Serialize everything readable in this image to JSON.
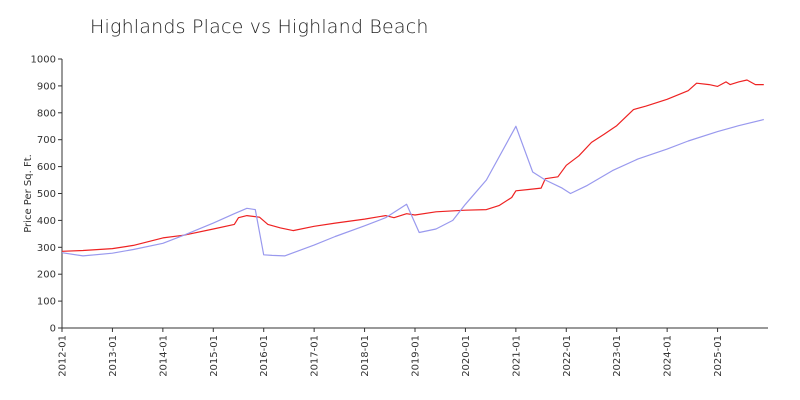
{
  "chart_data": {
    "type": "line",
    "title": "Highlands Place vs Highland Beach",
    "ylabel": "Price Per Sq. Ft.",
    "xlabel": "",
    "ylim": [
      0,
      1000
    ],
    "yticks": [
      0,
      100,
      200,
      300,
      400,
      500,
      600,
      700,
      800,
      900,
      1000
    ],
    "xlim": [
      "2012-01",
      "2025-12"
    ],
    "xticks": [
      "2012-01",
      "2013-01",
      "2014-01",
      "2015-01",
      "2016-01",
      "2017-01",
      "2018-01",
      "2019-01",
      "2020-01",
      "2021-01",
      "2022-01",
      "2023-01",
      "2024-01",
      "2025-01"
    ],
    "grid": false,
    "legend": "none",
    "series": [
      {
        "color": "#ee2222",
        "points": [
          [
            "2012-01",
            285
          ],
          [
            "2012-06",
            288
          ],
          [
            "2013-01",
            295
          ],
          [
            "2013-06",
            307
          ],
          [
            "2014-01",
            335
          ],
          [
            "2014-06",
            345
          ],
          [
            "2015-01",
            368
          ],
          [
            "2015-06",
            385
          ],
          [
            "2015-07",
            410
          ],
          [
            "2015-09",
            418
          ],
          [
            "2015-12",
            412
          ],
          [
            "2016-02",
            385
          ],
          [
            "2016-05",
            372
          ],
          [
            "2016-08",
            362
          ],
          [
            "2017-01",
            378
          ],
          [
            "2017-06",
            390
          ],
          [
            "2018-01",
            405
          ],
          [
            "2018-06",
            418
          ],
          [
            "2018-08",
            410
          ],
          [
            "2018-11",
            425
          ],
          [
            "2019-01",
            420
          ],
          [
            "2019-06",
            432
          ],
          [
            "2020-01",
            438
          ],
          [
            "2020-06",
            440
          ],
          [
            "2020-09",
            455
          ],
          [
            "2020-12",
            485
          ],
          [
            "2021-01",
            510
          ],
          [
            "2021-04",
            515
          ],
          [
            "2021-07",
            520
          ],
          [
            "2021-08",
            555
          ],
          [
            "2021-11",
            562
          ],
          [
            "2022-01",
            605
          ],
          [
            "2022-04",
            640
          ],
          [
            "2022-07",
            690
          ],
          [
            "2022-10",
            720
          ],
          [
            "2023-01",
            752
          ],
          [
            "2023-05",
            812
          ],
          [
            "2023-08",
            825
          ],
          [
            "2024-01",
            850
          ],
          [
            "2024-06",
            882
          ],
          [
            "2024-08",
            910
          ],
          [
            "2024-11",
            905
          ],
          [
            "2025-01",
            898
          ],
          [
            "2025-03",
            915
          ],
          [
            "2025-04",
            905
          ],
          [
            "2025-06",
            915
          ],
          [
            "2025-08",
            922
          ],
          [
            "2025-10",
            905
          ],
          [
            "2025-12",
            905
          ]
        ]
      },
      {
        "color": "#9999ee",
        "points": [
          [
            "2012-01",
            280
          ],
          [
            "2012-06",
            268
          ],
          [
            "2013-01",
            278
          ],
          [
            "2013-06",
            292
          ],
          [
            "2014-01",
            315
          ],
          [
            "2014-06",
            345
          ],
          [
            "2015-01",
            390
          ],
          [
            "2015-06",
            425
          ],
          [
            "2015-09",
            445
          ],
          [
            "2015-11",
            440
          ],
          [
            "2016-01",
            272
          ],
          [
            "2016-03",
            270
          ],
          [
            "2016-06",
            268
          ],
          [
            "2017-01",
            308
          ],
          [
            "2017-06",
            340
          ],
          [
            "2018-01",
            380
          ],
          [
            "2018-06",
            410
          ],
          [
            "2018-11",
            460
          ],
          [
            "2019-02",
            355
          ],
          [
            "2019-06",
            368
          ],
          [
            "2019-10",
            400
          ],
          [
            "2020-01",
            460
          ],
          [
            "2020-06",
            550
          ],
          [
            "2021-01",
            750
          ],
          [
            "2021-05",
            580
          ],
          [
            "2021-08",
            550
          ],
          [
            "2021-12",
            520
          ],
          [
            "2022-02",
            500
          ],
          [
            "2022-06",
            530
          ],
          [
            "2022-12",
            585
          ],
          [
            "2023-06",
            628
          ],
          [
            "2024-01",
            665
          ],
          [
            "2024-06",
            695
          ],
          [
            "2025-01",
            730
          ],
          [
            "2025-06",
            752
          ],
          [
            "2025-12",
            775
          ]
        ]
      }
    ]
  }
}
